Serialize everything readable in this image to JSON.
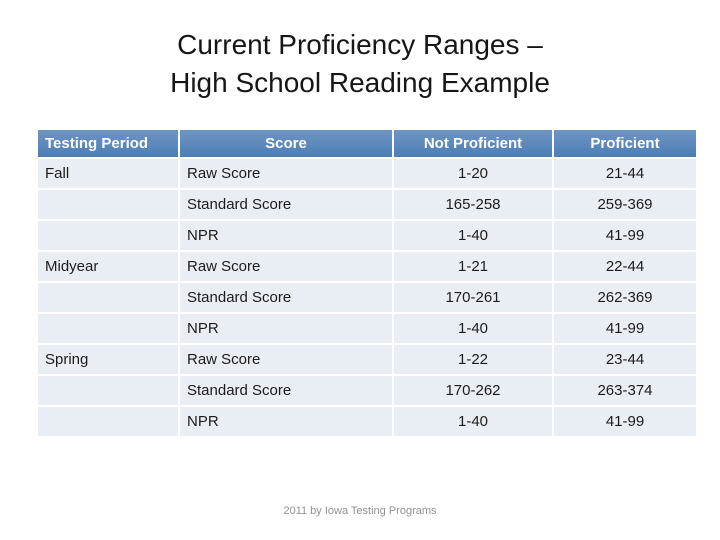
{
  "slide": {
    "title_line1": "Current Proficiency Ranges –",
    "title_line2": "High School Reading Example",
    "footer": "2011 by Iowa Testing Programs"
  },
  "table": {
    "headers": [
      "Testing Period",
      "Score",
      "Not Proficient",
      "Proficient"
    ],
    "rows": [
      {
        "period": "Fall",
        "score": "Raw Score",
        "not_proficient": "1-20",
        "proficient": "21-44"
      },
      {
        "period": "",
        "score": "Standard Score",
        "not_proficient": "165-258",
        "proficient": "259-369"
      },
      {
        "period": "",
        "score": "NPR",
        "not_proficient": "1-40",
        "proficient": "41-99"
      },
      {
        "period": "Midyear",
        "score": "Raw Score",
        "not_proficient": "1-21",
        "proficient": "22-44"
      },
      {
        "period": "",
        "score": "Standard Score",
        "not_proficient": "170-261",
        "proficient": "262-369"
      },
      {
        "period": "",
        "score": "NPR",
        "not_proficient": "1-40",
        "proficient": "41-99"
      },
      {
        "period": "Spring",
        "score": "Raw Score",
        "not_proficient": "1-22",
        "proficient": "23-44"
      },
      {
        "period": "",
        "score": "Standard Score",
        "not_proficient": "170-262",
        "proficient": "263-374"
      },
      {
        "period": "",
        "score": "NPR",
        "not_proficient": "1-40",
        "proficient": "41-99"
      }
    ],
    "colors": {
      "header_bg": "#4F81BD",
      "header_text": "#FFFFFF",
      "row_bg": "#E9EDF4",
      "separator": "#FFFFFF"
    }
  }
}
